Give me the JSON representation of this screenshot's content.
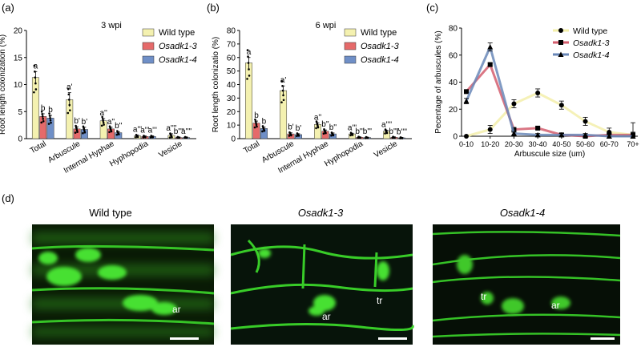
{
  "panels": {
    "a": "(a)",
    "b": "(b)",
    "c": "(c)",
    "d": "(d)"
  },
  "colors": {
    "wild_type": "#f4f1b0",
    "osadk1_3": "#e56a6a",
    "osadk1_4": "#6f8fc7",
    "line_wt": "#f3efaa",
    "line_k3": "#d45e6e",
    "line_k4": "#6a88b8",
    "micro_bg": "#0a1a06",
    "micro_green": "#3bd62a"
  },
  "legend": {
    "wild_type": "Wild type",
    "osadk1_3": "Osadk1-3",
    "osadk1_4": "Osadk1-4"
  },
  "chart_data": [
    {
      "type": "bar",
      "panel": "a",
      "title": "3 wpi",
      "ylabel": "Root length colonization (%)",
      "ylim": [
        0,
        20
      ],
      "yticks": [
        0,
        5,
        10,
        15,
        20
      ],
      "categories": [
        "Total",
        "Arbuscule",
        "Internal Hyphae",
        "Hyphopodia",
        "Vesicle"
      ],
      "series": [
        {
          "name": "Wild type",
          "values": [
            11.3,
            7.2,
            3.3,
            0.5,
            0.6
          ],
          "errors": [
            1.1,
            1.3,
            0.4,
            0.15,
            0.3
          ]
        },
        {
          "name": "Osadk1-3",
          "values": [
            4.1,
            1.8,
            1.8,
            0.4,
            0.2
          ],
          "errors": [
            0.5,
            0.4,
            0.3,
            0.1,
            0.1
          ]
        },
        {
          "name": "Osadk1-4",
          "values": [
            3.8,
            1.7,
            1.1,
            0.4,
            0.2
          ],
          "errors": [
            0.5,
            0.4,
            0.2,
            0.1,
            0.1
          ]
        }
      ],
      "letters": [
        [
          "a",
          "b",
          "b"
        ],
        [
          "a'",
          "b'",
          "b'"
        ],
        [
          "a''",
          "a''",
          "b''"
        ],
        [
          "a'''",
          "a'''",
          "a'''"
        ],
        [
          "a''''",
          "b''''",
          "a''''"
        ]
      ]
    },
    {
      "type": "bar",
      "panel": "b",
      "title": "6 wpi",
      "ylabel": "Root length colonizatio (%)",
      "ylim": [
        0,
        80
      ],
      "yticks": [
        0,
        10,
        20,
        30,
        40,
        50,
        60,
        70,
        80
      ],
      "categories": [
        "Total",
        "Arbuscule",
        "Internal Hyphae",
        "Hyphopodia",
        "Vesicle"
      ],
      "series": [
        {
          "name": "Wild type",
          "values": [
            56.0,
            35.5,
            10.5,
            3.5,
            5.5
          ],
          "errors": [
            4.0,
            3.5,
            1.2,
            0.5,
            0.8
          ]
        },
        {
          "name": "Osadk1-3",
          "values": [
            11.5,
            3.5,
            5.5,
            1.0,
            1.0
          ],
          "errors": [
            1.5,
            0.8,
            0.9,
            0.3,
            0.3
          ]
        },
        {
          "name": "Osadk1-4",
          "values": [
            7.5,
            3.0,
            3.5,
            0.8,
            0.6
          ],
          "errors": [
            1.0,
            0.6,
            0.7,
            0.3,
            0.3
          ]
        }
      ],
      "letters": [
        [
          "a",
          "b",
          "b"
        ],
        [
          "a'",
          "b'",
          "b'"
        ],
        [
          "a''",
          "b''",
          "b''"
        ],
        [
          "a'''",
          "b'''",
          "b'''"
        ],
        [
          "a''''",
          "b''''",
          "b''''"
        ]
      ]
    },
    {
      "type": "line",
      "panel": "c",
      "xlabel": "Arbuscule size (um)",
      "ylabel": "Pecentage of arbuscules (%)",
      "ylim": [
        0,
        80
      ],
      "yticks": [
        0,
        20,
        40,
        60,
        80
      ],
      "x": [
        "0-10",
        "10-20",
        "20-30",
        "30-40",
        "40-50",
        "50-60",
        "60-70",
        "70+"
      ],
      "series": [
        {
          "name": "Wild type",
          "values": [
            0,
            5,
            24,
            32,
            23,
            11,
            3,
            1
          ],
          "errors": [
            0,
            3,
            3,
            3,
            3,
            3,
            3,
            2
          ]
        },
        {
          "name": "Osadk1-3",
          "values": [
            33,
            53,
            5,
            6,
            1,
            0,
            1,
            1
          ],
          "errors": [
            1,
            1,
            1,
            1,
            1,
            0,
            1,
            9
          ]
        },
        {
          "name": "Osadk1-4",
          "values": [
            26,
            66,
            2,
            1,
            1,
            1,
            0,
            0
          ],
          "errors": [
            2,
            3,
            1,
            1,
            1,
            1,
            0,
            0
          ]
        }
      ]
    }
  ],
  "micrographs": [
    {
      "title": "Wild type",
      "labels": [
        "ar"
      ]
    },
    {
      "title": "Osadk1-3",
      "labels": [
        "ar",
        "tr"
      ]
    },
    {
      "title": "Osadk1-4",
      "labels": [
        "tr",
        "ar"
      ]
    }
  ]
}
